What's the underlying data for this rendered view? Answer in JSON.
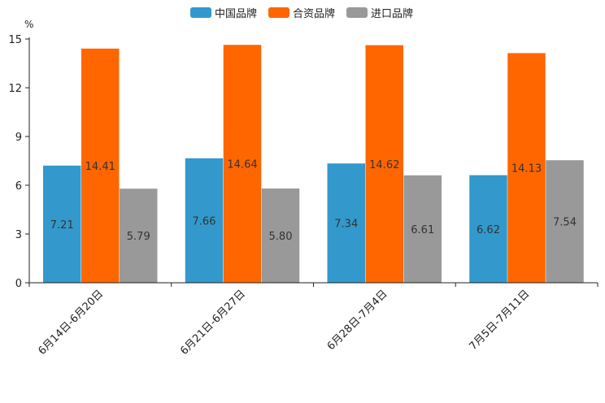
{
  "chart_data": {
    "type": "bar",
    "categories": [
      "6月14日-6月20日",
      "6月21日-6月27日",
      "6月28日-7月4日",
      "7月5日-7月11日"
    ],
    "series": [
      {
        "name": "中国品牌",
        "color": "#3399CC",
        "values": [
          7.21,
          7.66,
          7.34,
          6.62
        ],
        "labels": [
          "7.21",
          "7.66",
          "7.34",
          "6.62"
        ]
      },
      {
        "name": "合资品牌",
        "color": "#FF6600",
        "values": [
          14.41,
          14.64,
          14.62,
          14.13
        ],
        "labels": [
          "14.41",
          "14.64",
          "14.62",
          "14.13"
        ]
      },
      {
        "name": "进口品牌",
        "color": "#999999",
        "values": [
          5.79,
          5.8,
          6.61,
          7.54
        ],
        "labels": [
          "5.79",
          "5.80",
          "6.61",
          "7.54"
        ]
      }
    ],
    "ylabel": "%",
    "ylim": [
      0,
      15
    ],
    "yticks": [
      "0",
      "3",
      "6",
      "9",
      "12",
      "15"
    ],
    "legend_position": "top-center",
    "grid": false
  }
}
